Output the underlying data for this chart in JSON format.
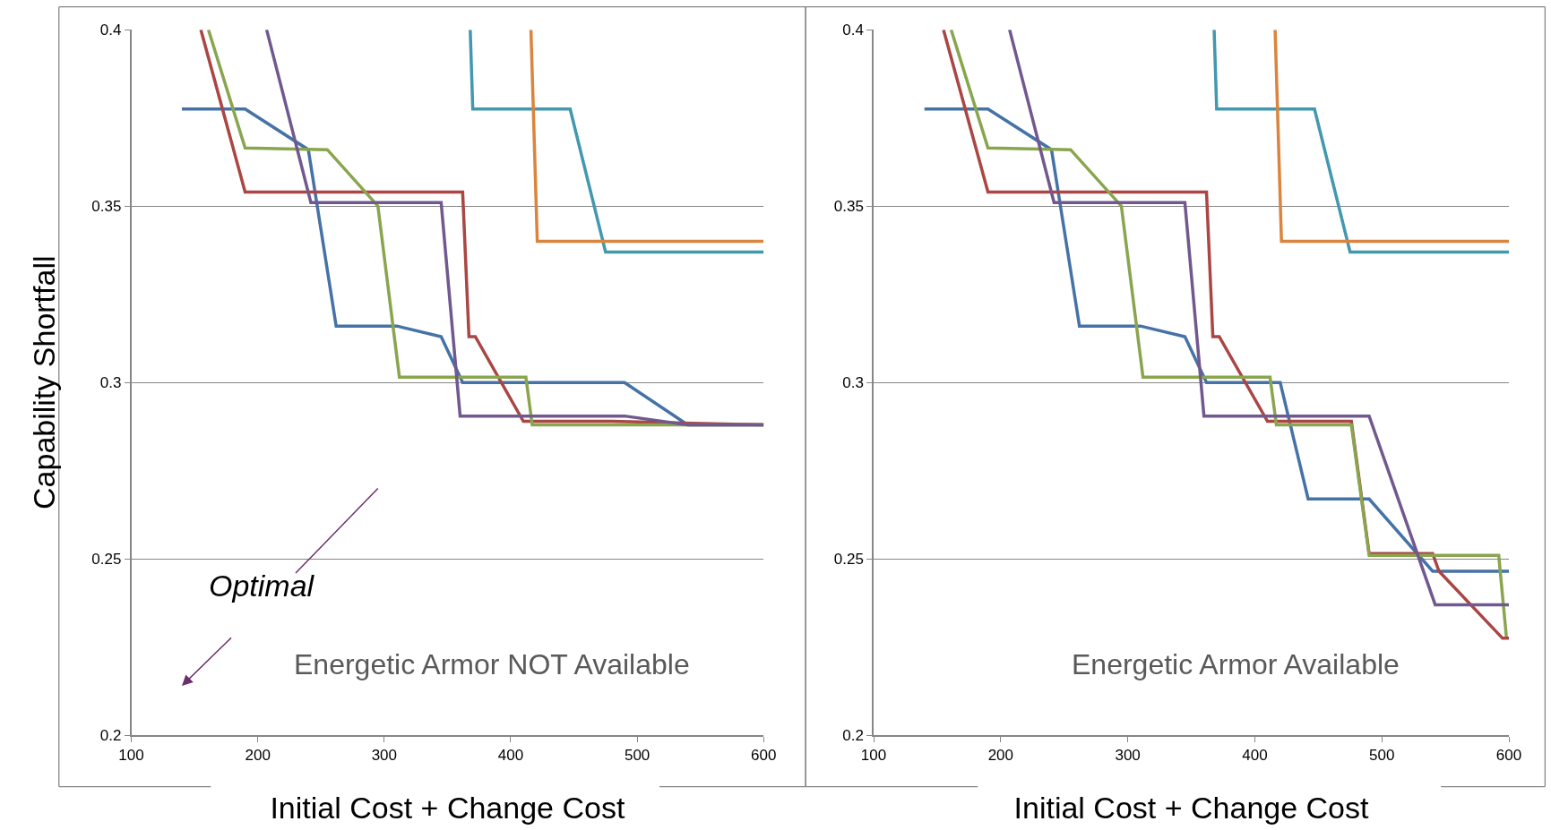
{
  "chart_data": [
    {
      "type": "line",
      "xlabel": "Initial Cost + Change Cost",
      "ylabel": "Capability Shortfall",
      "xlim": [
        100,
        600
      ],
      "xticks": [
        100,
        200,
        300,
        400,
        500,
        600
      ],
      "ylim": [
        0.2,
        0.4
      ],
      "yticks": [
        0.2,
        0.25,
        0.3,
        0.35,
        0.4
      ],
      "grid": "y",
      "marker": "none",
      "line_style": "solid",
      "annotations": [
        "Optimal",
        "Energetic Armor NOT Available"
      ],
      "series": [
        {
          "color": "#4572a7",
          "x": [
            140,
            190,
            240,
            262,
            310,
            345,
            362,
            490,
            540,
            600
          ],
          "values": [
            0.3775,
            0.3775,
            0.366,
            0.316,
            0.316,
            0.313,
            0.3,
            0.3,
            0.288,
            0.288
          ]
        },
        {
          "color": "#aa4643",
          "x": [
            155,
            190,
            362,
            367,
            372,
            410,
            480,
            600
          ],
          "values": [
            0.4,
            0.354,
            0.354,
            0.313,
            0.313,
            0.289,
            0.289,
            0.288
          ]
        },
        {
          "color": "#89a54e",
          "x": [
            161,
            190,
            255,
            295,
            312,
            412,
            417,
            600
          ],
          "values": [
            0.4,
            0.3665,
            0.366,
            0.35,
            0.3015,
            0.3015,
            0.288,
            0.288
          ]
        },
        {
          "color": "#71588f",
          "x": [
            207,
            242,
            345,
            360,
            490,
            540,
            600
          ],
          "values": [
            0.4,
            0.351,
            0.351,
            0.2905,
            0.2905,
            0.288,
            0.288
          ]
        },
        {
          "color": "#4198af",
          "x": [
            368,
            370,
            447,
            475,
            600
          ],
          "values": [
            0.4,
            0.3775,
            0.3775,
            0.337,
            0.337
          ]
        },
        {
          "color": "#db843d",
          "x": [
            416,
            421,
            600
          ],
          "values": [
            0.4,
            0.34,
            0.34
          ]
        }
      ]
    },
    {
      "type": "line",
      "xlabel": "Initial Cost + Change Cost",
      "xlim": [
        100,
        600
      ],
      "xticks": [
        100,
        200,
        300,
        400,
        500,
        600
      ],
      "ylim": [
        0.2,
        0.4
      ],
      "yticks": [
        0.2,
        0.25,
        0.3,
        0.35,
        0.4
      ],
      "grid": "y",
      "marker": "none",
      "line_style": "solid",
      "annotations": [
        "Energetic Armor Available"
      ],
      "series": [
        {
          "color": "#4572a7",
          "x": [
            140,
            190,
            240,
            262,
            310,
            345,
            362,
            420,
            442,
            490,
            540,
            600
          ],
          "values": [
            0.3775,
            0.3775,
            0.366,
            0.316,
            0.316,
            0.313,
            0.3,
            0.3,
            0.267,
            0.267,
            0.2465,
            0.2465
          ]
        },
        {
          "color": "#aa4643",
          "x": [
            155,
            190,
            362,
            367,
            372,
            410,
            476,
            490,
            540,
            545,
            595,
            600
          ],
          "values": [
            0.4,
            0.354,
            0.354,
            0.313,
            0.313,
            0.289,
            0.289,
            0.2515,
            0.2515,
            0.2465,
            0.2275,
            0.2275
          ]
        },
        {
          "color": "#89a54e",
          "x": [
            161,
            190,
            255,
            295,
            312,
            412,
            417,
            476,
            490,
            592,
            598
          ],
          "values": [
            0.4,
            0.3665,
            0.366,
            0.35,
            0.3015,
            0.3015,
            0.288,
            0.288,
            0.251,
            0.251,
            0.228
          ]
        },
        {
          "color": "#71588f",
          "x": [
            207,
            242,
            345,
            360,
            490,
            542,
            600
          ],
          "values": [
            0.4,
            0.351,
            0.351,
            0.2905,
            0.2905,
            0.237,
            0.237
          ]
        },
        {
          "color": "#4198af",
          "x": [
            368,
            370,
            447,
            475,
            600
          ],
          "values": [
            0.4,
            0.3775,
            0.3775,
            0.337,
            0.337
          ]
        },
        {
          "color": "#db843d",
          "x": [
            416,
            421,
            600
          ],
          "values": [
            0.4,
            0.34,
            0.34
          ]
        }
      ]
    }
  ]
}
